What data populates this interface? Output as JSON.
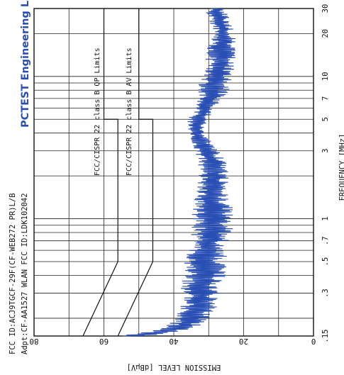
{
  "header": {
    "line1": "FCC ID:ACJ9TGCF-29F(CF-WEB272 PR)L/B",
    "line2": "Adpt:CF-AA1527 WLAN FCC ID:LDK102042",
    "lab": "PCTEST Engineering Lab."
  },
  "chart_data": {
    "type": "line",
    "orientation": "rotated-90-cw",
    "xlabel": "FREQUENCY [MHz]",
    "ylabel": "EMISSION LEVEL [dBμV]",
    "xscale": "log",
    "xlim": [
      0.15,
      30
    ],
    "ylim": [
      0,
      80
    ],
    "x_ticks": [
      ".15",
      ".3",
      ".5",
      ".7",
      "1",
      "3",
      "5",
      "7",
      "10",
      "20",
      "30"
    ],
    "x_tick_values": [
      0.15,
      0.3,
      0.5,
      0.7,
      1,
      3,
      5,
      7,
      10,
      20,
      30
    ],
    "y_ticks": [
      "0",
      "20",
      "40",
      "60",
      "80"
    ],
    "y_tick_values": [
      0,
      20,
      40,
      60,
      80
    ],
    "grid": true,
    "limits": [
      {
        "name": "FCC/CISPR 22 class B QP Limits",
        "points": [
          [
            0.15,
            66
          ],
          [
            0.5,
            56
          ],
          [
            5,
            56
          ],
          [
            5,
            60
          ],
          [
            30,
            60
          ]
        ]
      },
      {
        "name": "FCC/CISPR 22 class B AV Limits",
        "points": [
          [
            0.15,
            56
          ],
          [
            0.5,
            46
          ],
          [
            5,
            46
          ],
          [
            5,
            50
          ],
          [
            30,
            50
          ]
        ]
      }
    ],
    "series": [
      {
        "color": "#2a4fb4",
        "x": [
          0.15,
          0.16,
          0.17,
          0.18,
          0.2,
          0.22,
          0.25,
          0.28,
          0.3,
          0.35,
          0.4,
          0.45,
          0.5,
          0.6,
          0.7,
          0.8,
          0.9,
          1.0,
          1.2,
          1.5,
          2.0,
          2.5,
          3.0,
          3.5,
          4.0,
          4.5,
          5.0,
          5.5,
          6.0,
          7.0,
          8.0,
          9.0,
          10.0,
          11.0,
          12.0,
          13.0,
          15.0,
          17.0,
          19.0,
          20.0,
          22.0,
          24.0,
          26.0,
          28.0,
          30.0
        ],
        "upper": [
          56,
          48,
          45,
          42,
          40,
          39,
          38,
          38,
          38,
          38,
          37,
          37,
          37,
          36,
          36,
          35,
          35,
          35,
          35,
          34,
          33,
          33,
          34,
          35,
          36,
          36,
          36,
          35,
          34,
          33,
          33,
          33,
          32,
          32,
          31,
          31,
          31,
          30,
          29,
          29,
          29,
          30,
          30,
          31,
          30
        ],
        "lower": [
          48,
          38,
          35,
          32,
          29,
          28,
          27,
          27,
          26,
          26,
          25,
          25,
          25,
          24,
          24,
          23,
          23,
          23,
          23,
          24,
          24,
          25,
          27,
          29,
          31,
          31,
          30,
          29,
          28,
          26,
          24,
          24,
          23,
          23,
          22,
          22,
          22,
          22,
          22,
          23,
          23,
          24,
          24,
          25,
          25
        ]
      }
    ]
  }
}
